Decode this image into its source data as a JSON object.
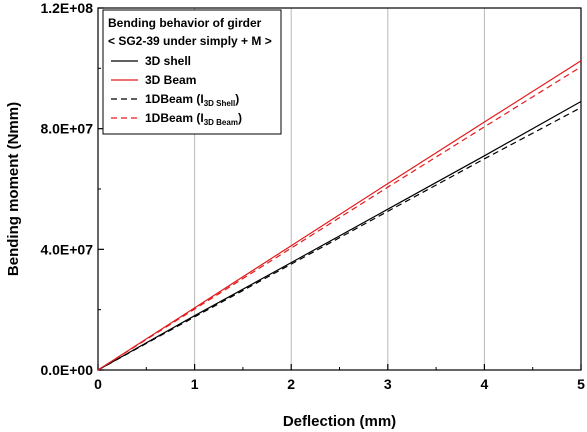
{
  "chart_data": {
    "type": "line",
    "title": "",
    "xlabel": "Deflection (mm)",
    "ylabel": "Bending moment (Nmm)",
    "xlim": [
      0,
      5
    ],
    "ylim": [
      0,
      120000000
    ],
    "x_ticks": [
      0,
      1,
      2,
      3,
      4,
      5
    ],
    "x_tick_labels": [
      "0",
      "1",
      "2",
      "3",
      "4",
      "5"
    ],
    "y_ticks": [
      0,
      40000000,
      80000000,
      120000000
    ],
    "y_tick_labels": [
      "0.0E+00",
      "4.0E+07",
      "8.0E+07",
      "1.2E+08"
    ],
    "grid": "vertical",
    "legend": {
      "placement": "top-left",
      "title_line1": "Bending behavior of girder",
      "title_line2": "< SG2-39 under simply + M >"
    },
    "series": [
      {
        "name": "3D shell",
        "label_main": "3D shell",
        "label_sub": "",
        "label_close": "",
        "color": "#000000",
        "dash": "solid",
        "x": [
          0,
          1,
          2,
          3,
          4,
          5
        ],
        "y": [
          0,
          18000000,
          35600000,
          53300000,
          71000000,
          89000000
        ]
      },
      {
        "name": "3D Beam",
        "label_main": "3D Beam",
        "label_sub": "",
        "label_close": "",
        "color": "#e31a1c",
        "dash": "solid",
        "x": [
          0,
          1,
          2,
          3,
          4,
          5
        ],
        "y": [
          0,
          20600000,
          41200000,
          61800000,
          82200000,
          102500000
        ]
      },
      {
        "name": "1DBeam (I3D Shell)",
        "label_main": "1DBeam (I",
        "label_sub": "3D Shell",
        "label_close": ")",
        "color": "#000000",
        "dash": "dashed",
        "x": [
          0,
          1,
          2,
          3,
          4,
          5
        ],
        "y": [
          0,
          17600000,
          35100000,
          52600000,
          70000000,
          87000000
        ]
      },
      {
        "name": "1DBeam (I3D Beam)",
        "label_main": "1DBeam (I",
        "label_sub": "3D Beam",
        "label_close": ")",
        "color": "#e31a1c",
        "dash": "dashed",
        "x": [
          0,
          1,
          2,
          3,
          4,
          5
        ],
        "y": [
          0,
          20200000,
          40400000,
          60600000,
          80600000,
          100500000
        ]
      }
    ]
  }
}
